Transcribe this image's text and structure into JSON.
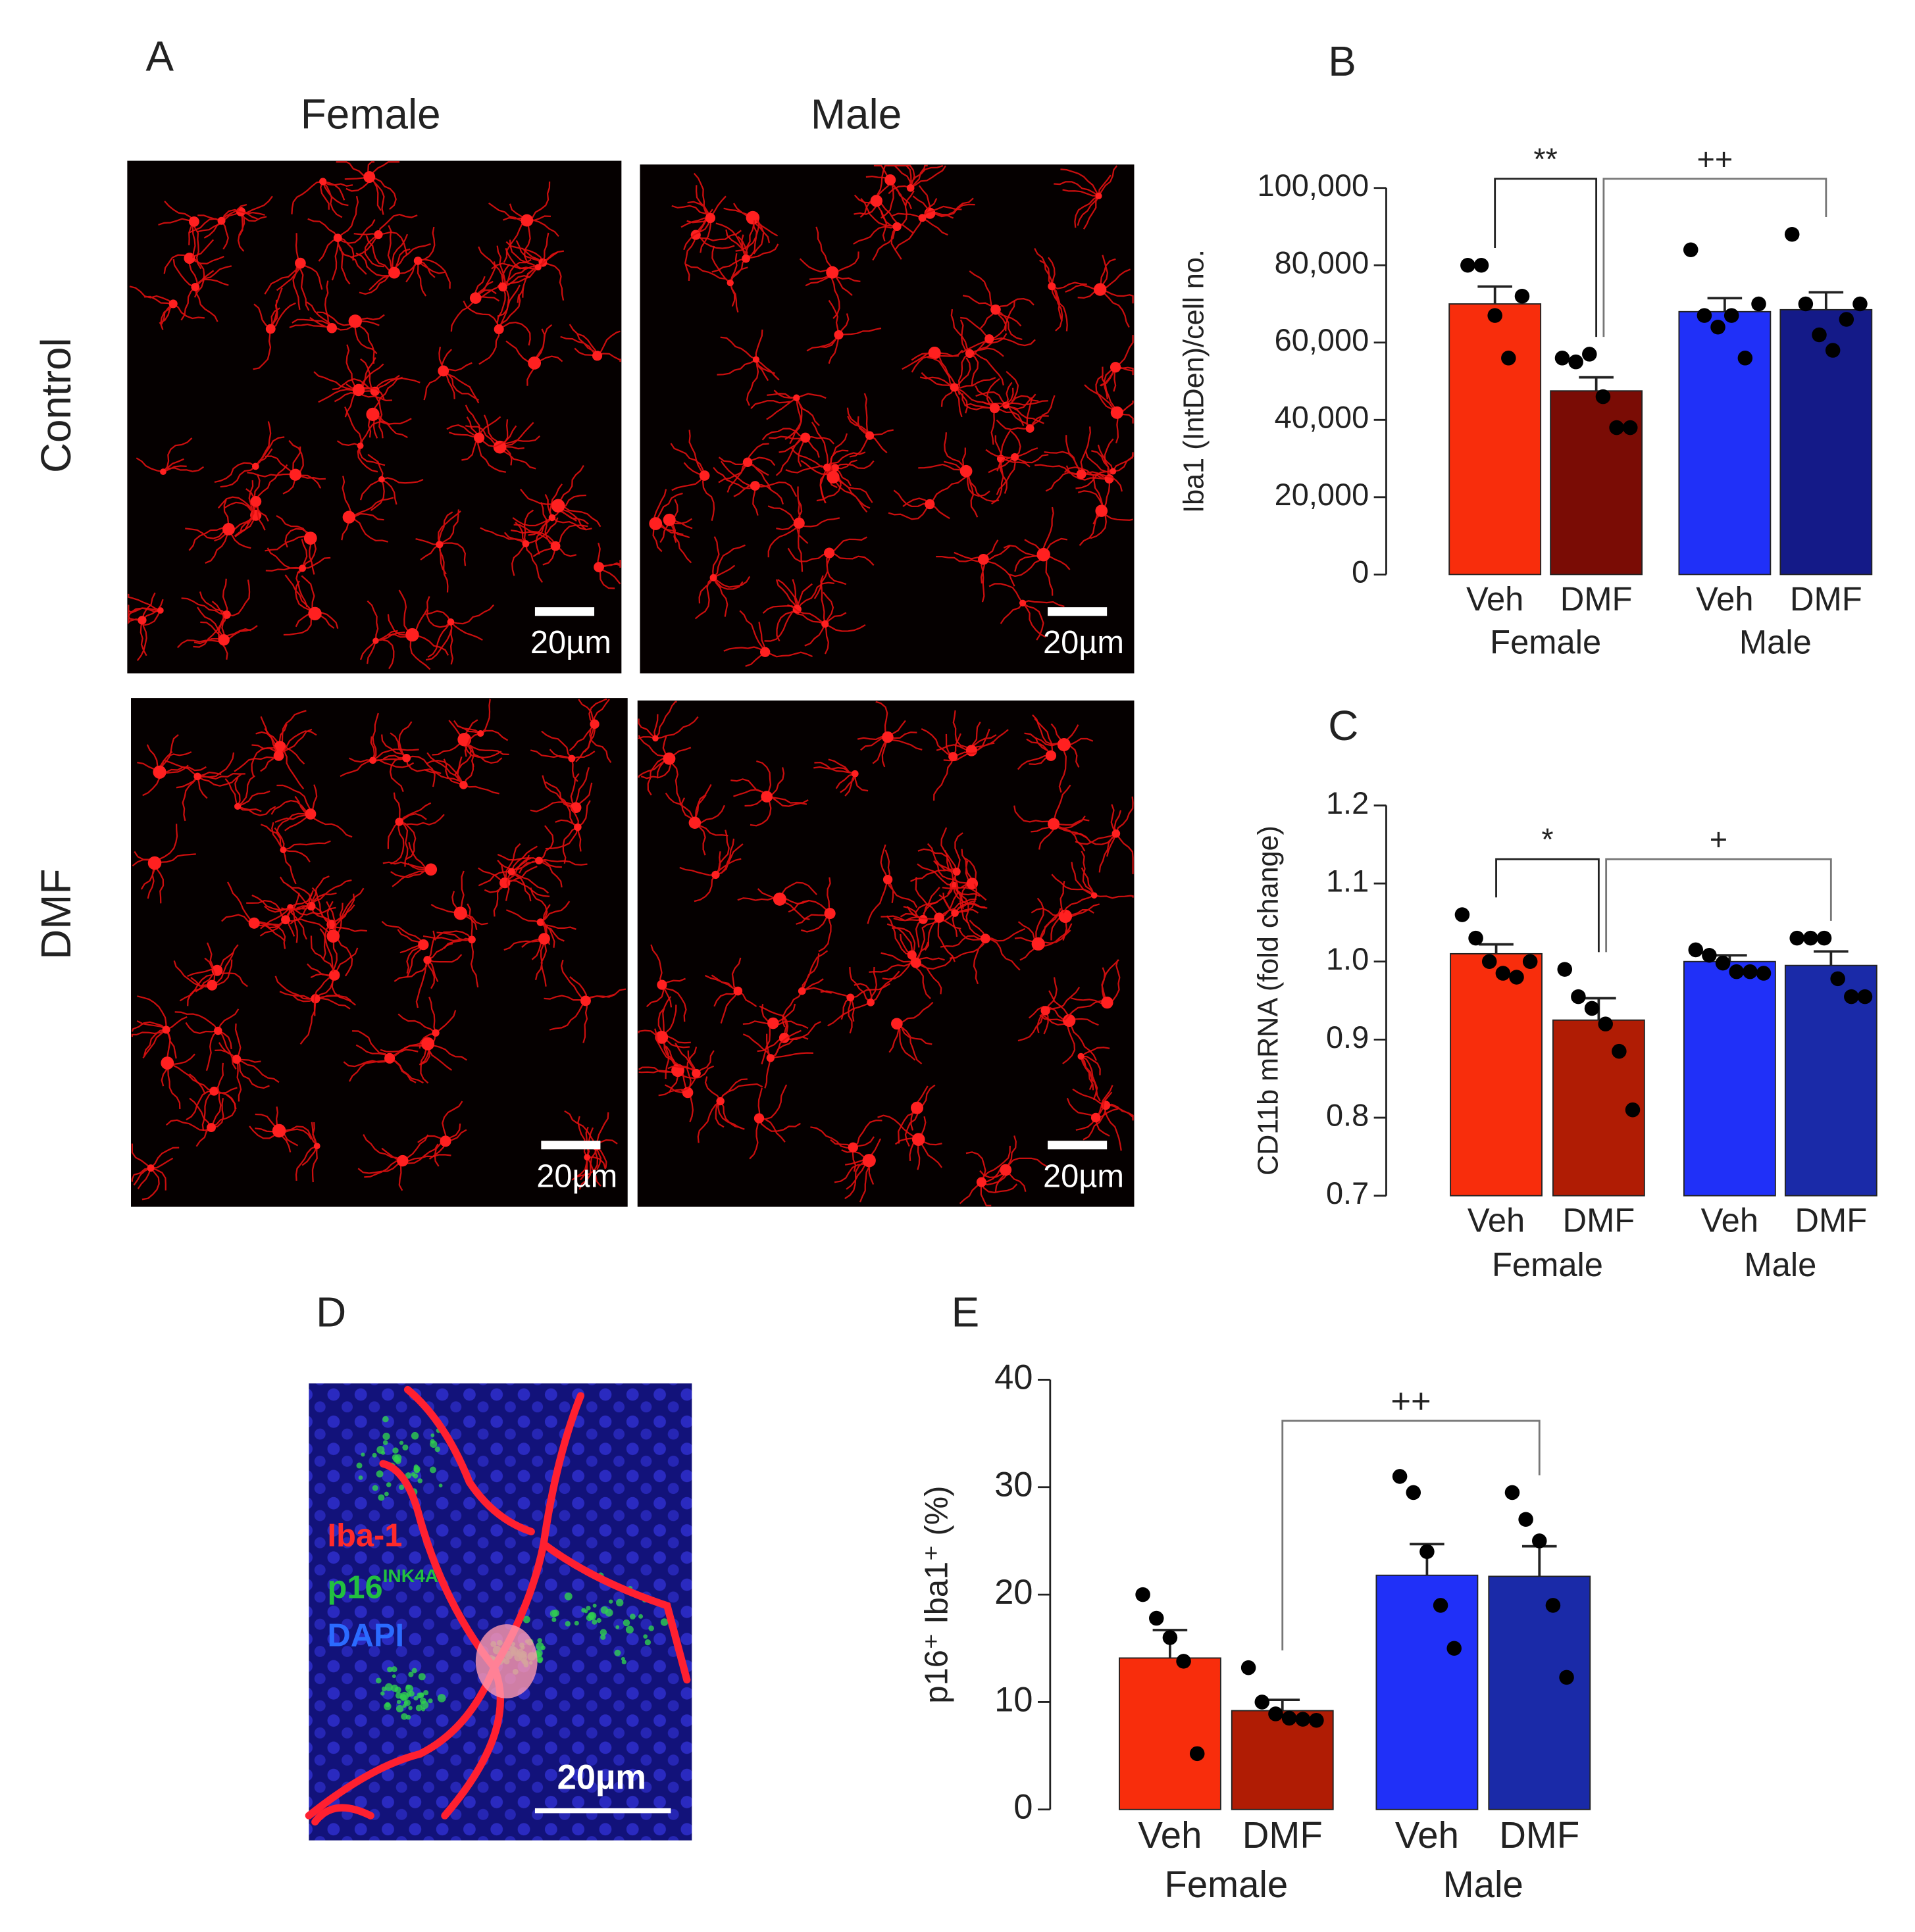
{
  "panel_a": {
    "label": "A",
    "columns": [
      "Female",
      "Male"
    ],
    "rows": [
      "Control",
      "DMF"
    ],
    "scale_bar": "20µm"
  },
  "panel_d": {
    "label": "D",
    "stains": [
      "Iba-1",
      "p16",
      "DAPI"
    ],
    "stain_superscript": "INK4A",
    "scale_bar": "20µm"
  },
  "chart_data": [
    {
      "type": "bar",
      "panel": "B",
      "y_label": "Iba1 (IntDen)/cell no.",
      "categories": [
        "Veh",
        "DMF",
        "Veh",
        "DMF"
      ],
      "groups": [
        "Female",
        "Male"
      ],
      "colors": [
        "#f82d0c",
        "#7a0c05",
        "#2030f8",
        "#141a88"
      ],
      "values": [
        70000,
        47500,
        68000,
        68500
      ],
      "errors": [
        4500,
        3500,
        3500,
        4500
      ],
      "points": [
        [
          80000,
          80000,
          67000,
          56000,
          72000
        ],
        [
          56000,
          55000,
          57000,
          46000,
          38000,
          38000
        ],
        [
          84000,
          67000,
          64000,
          67000,
          56000,
          70000
        ],
        [
          88000,
          70000,
          62000,
          58000,
          66000,
          70000
        ]
      ],
      "ylim": [
        0,
        100000
      ],
      "yticks": [
        0,
        {
          "value": 20000,
          "label": "20,000"
        },
        {
          "value": 40000,
          "label": "40,000"
        },
        {
          "value": 60000,
          "label": "60,000"
        },
        {
          "value": 80000,
          "label": "80,000"
        },
        {
          "value": 100000,
          "label": "100,000"
        }
      ],
      "annotations": [
        {
          "text": "**",
          "between": [
            0,
            1
          ]
        },
        {
          "text": "++",
          "between": [
            1,
            3
          ]
        }
      ]
    },
    {
      "type": "bar",
      "panel": "C",
      "y_label": "CD11b mRNA (fold change)",
      "categories": [
        "Veh",
        "DMF",
        "Veh",
        "DMF"
      ],
      "groups": [
        "Female",
        "Male"
      ],
      "colors": [
        "#f82d0c",
        "#b01c04",
        "#2030f8",
        "#1a2aa8"
      ],
      "values": [
        1.01,
        0.925,
        1.0,
        0.995
      ],
      "errors": [
        0.012,
        0.028,
        0.008,
        0.018
      ],
      "points": [
        [
          1.06,
          1.03,
          1.0,
          0.985,
          0.98,
          1.0
        ],
        [
          0.99,
          0.955,
          0.94,
          0.92,
          0.885,
          0.81
        ],
        [
          1.015,
          1.008,
          0.998,
          0.987,
          0.987,
          0.985
        ],
        [
          1.03,
          1.03,
          1.03,
          0.978,
          0.955,
          0.955
        ]
      ],
      "ylim": [
        0.7,
        1.2
      ],
      "yticks": [
        0.7,
        0.8,
        0.9,
        {
          "value": 1,
          "label": "1.0"
        },
        1.1,
        1.2
      ],
      "annotations": [
        {
          "text": "*",
          "between": [
            0,
            1
          ]
        },
        {
          "text": "+",
          "between": [
            1,
            3
          ]
        }
      ]
    },
    {
      "type": "bar",
      "panel": "E",
      "y_label": "p16⁺ Iba1⁺ (%)",
      "categories": [
        "Veh",
        "DMF",
        "Veh",
        "DMF"
      ],
      "groups": [
        "Female",
        "Male"
      ],
      "colors": [
        "#f82d0c",
        "#b01c04",
        "#2030f8",
        "#1a2aa8"
      ],
      "values": [
        14.1,
        9.2,
        21.8,
        21.7
      ],
      "errors": [
        2.6,
        1.0,
        2.9,
        2.8
      ],
      "points": [
        [
          20,
          17.8,
          16,
          13.8,
          5.2
        ],
        [
          13.2,
          10,
          8.9,
          8.5,
          8.4,
          8.3
        ],
        [
          31,
          29.5,
          24,
          19,
          15
        ],
        [
          29.5,
          27,
          25,
          19,
          12.3
        ]
      ],
      "ylim": [
        0,
        40
      ],
      "yticks": [
        0,
        10,
        20,
        30,
        40
      ],
      "annotations": [
        {
          "text": "++",
          "between": [
            1,
            3
          ]
        }
      ]
    }
  ]
}
